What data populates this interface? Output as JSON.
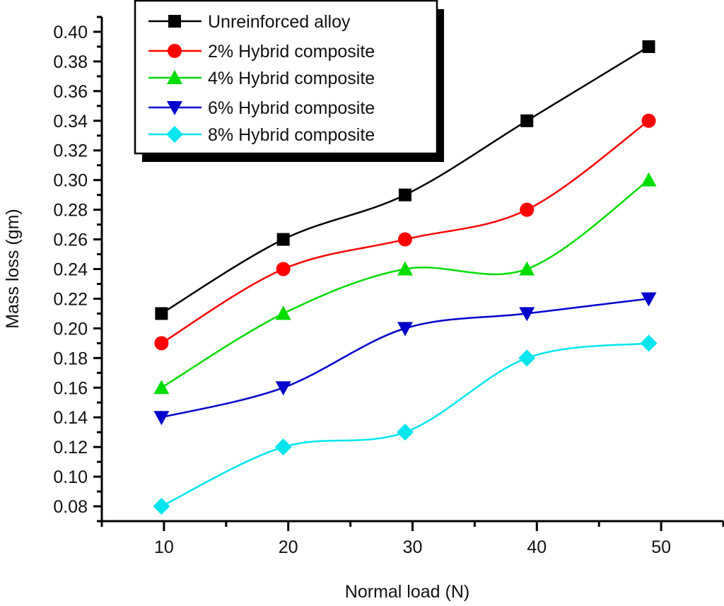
{
  "chart_data": {
    "type": "line",
    "title": "",
    "xlabel": "Normal load (N)",
    "ylabel": "Mass loss (gm)",
    "xlim": [
      5,
      55
    ],
    "ylim": [
      0.07,
      0.41
    ],
    "x_ticks": [
      10,
      20,
      30,
      40,
      50
    ],
    "x_tick_labels": [
      "10",
      "20",
      "30",
      "40",
      "50"
    ],
    "x_minor_step": 5,
    "y_ticks": [
      0.08,
      0.1,
      0.12,
      0.14,
      0.16,
      0.18,
      0.2,
      0.22,
      0.24,
      0.26,
      0.28,
      0.3,
      0.32,
      0.34,
      0.36,
      0.38,
      0.4
    ],
    "y_tick_labels": [
      "0.08",
      "0.10",
      "0.12",
      "0.14",
      "0.16",
      "0.18",
      "0.20",
      "0.22",
      "0.24",
      "0.26",
      "0.28",
      "0.30",
      "0.32",
      "0.34",
      "0.36",
      "0.38",
      "0.40"
    ],
    "y_minor_step": 0.01,
    "grid": false,
    "legend_position": "top-left",
    "x": [
      9.8,
      19.6,
      29.4,
      39.2,
      49
    ],
    "series": [
      {
        "name": "Unreinforced alloy",
        "color": "#000000",
        "marker": "square",
        "values": [
          0.21,
          0.26,
          0.29,
          0.34,
          0.39
        ]
      },
      {
        "name": "2% Hybrid composite",
        "color": "#ff0000",
        "marker": "circle",
        "values": [
          0.19,
          0.24,
          0.26,
          0.28,
          0.34
        ]
      },
      {
        "name": "4% Hybrid composite",
        "color": "#00dd00",
        "marker": "triangle-up",
        "values": [
          0.16,
          0.21,
          0.24,
          0.24,
          0.3
        ]
      },
      {
        "name": "6% Hybrid composite",
        "color": "#0000cc",
        "marker": "triangle-down",
        "values": [
          0.14,
          0.16,
          0.2,
          0.21,
          0.22
        ]
      },
      {
        "name": "8% Hybrid composite",
        "color": "#00e5ee",
        "marker": "diamond",
        "values": [
          0.08,
          0.12,
          0.13,
          0.18,
          0.19
        ]
      }
    ],
    "line_style": "smooth-spline"
  }
}
